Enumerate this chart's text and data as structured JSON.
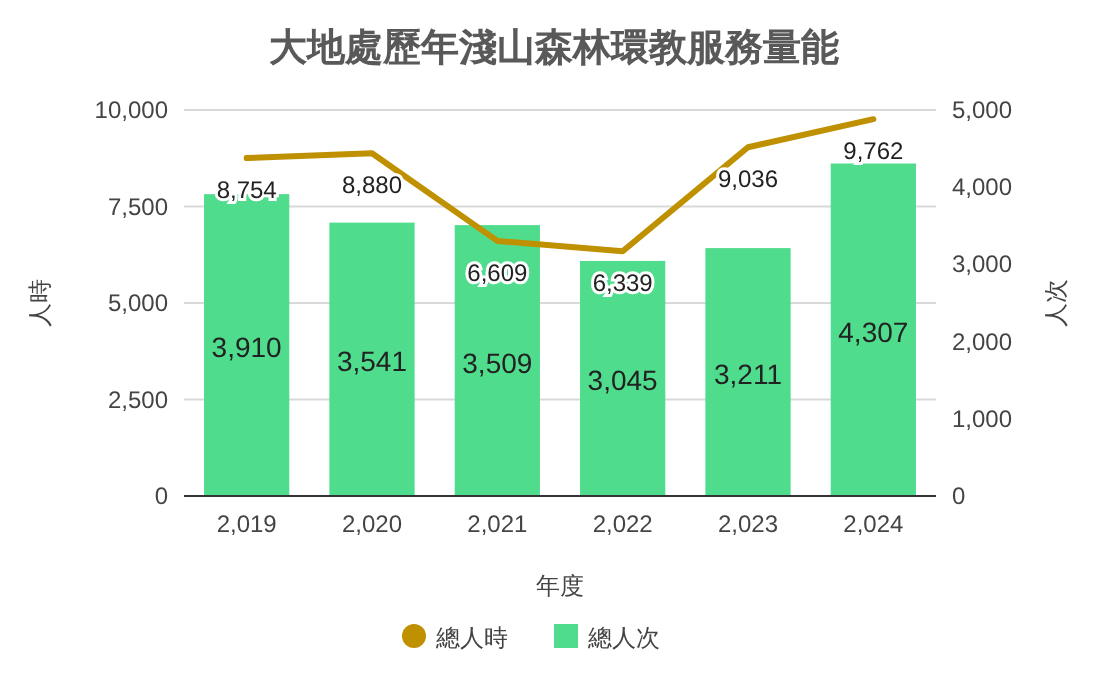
{
  "chart_data": {
    "type": "bar",
    "title": "大地處歷年淺山森林環教服務量能",
    "xlabel": "年度",
    "ylabel": "人時",
    "y2label": "人次",
    "categories": [
      "2,019",
      "2,020",
      "2,021",
      "2,022",
      "2,023",
      "2,024"
    ],
    "series": [
      {
        "name": "總人時",
        "type": "line",
        "axis": "y",
        "color": "#bf9000",
        "values": [
          8754,
          8880,
          6609,
          6339,
          9036,
          9762
        ],
        "value_labels": [
          "8,754",
          "8,880",
          "6,609",
          "6,339",
          "9,036",
          "9,762"
        ]
      },
      {
        "name": "總人次",
        "axis": "y2",
        "color": "#4fdc8c",
        "values": [
          3910,
          3541,
          3509,
          3045,
          3211,
          4307
        ],
        "value_labels": [
          "3,910",
          "3,541",
          "3,509",
          "3,045",
          "3,211",
          "4,307"
        ]
      }
    ],
    "ylim": [
      0,
      10000
    ],
    "yticks": [
      0,
      {
        "value": 2500,
        "label": "2,500"
      },
      {
        "value": 5000,
        "label": "5,000"
      },
      {
        "value": 7500,
        "label": "7,500"
      },
      {
        "value": 10000,
        "label": "10,000"
      }
    ],
    "y2lim": [
      0,
      5000
    ],
    "y2ticks": [
      0,
      {
        "value": 1000,
        "label": "1,000"
      },
      {
        "value": 2000,
        "label": "2,000"
      },
      {
        "value": 3000,
        "label": "3,000"
      },
      {
        "value": 4000,
        "label": "4,000"
      },
      {
        "value": 5000,
        "label": "5,000"
      }
    ],
    "grid": "y",
    "legend": "bottom"
  }
}
